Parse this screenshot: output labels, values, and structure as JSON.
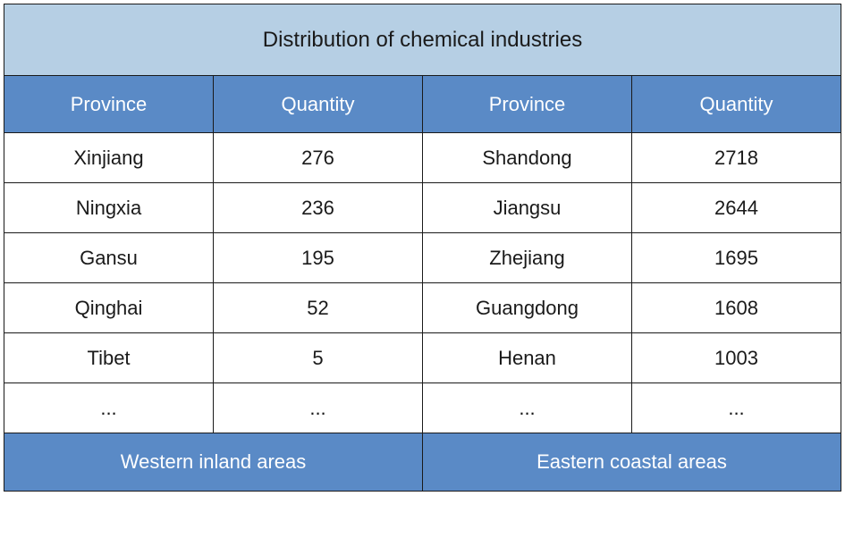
{
  "table": {
    "type": "table",
    "title": "Distribution of chemical industries",
    "title_bg": "#b6cfe4",
    "title_color": "#1a1a1a",
    "title_fontsize": 24,
    "header_bg": "#5a8ac6",
    "header_color": "#ffffff",
    "header_fontsize": 22,
    "cell_bg": "#ffffff",
    "cell_color": "#1a1a1a",
    "cell_fontsize": 22,
    "footer_bg": "#5a8ac6",
    "footer_color": "#ffffff",
    "footer_fontsize": 22,
    "border_color": "#1a1a1a",
    "columns": [
      "Province",
      "Quantity",
      "Province",
      "Quantity"
    ],
    "rows": [
      [
        "Xinjiang",
        "276",
        "Shandong",
        "2718"
      ],
      [
        "Ningxia",
        "236",
        "Jiangsu",
        "2644"
      ],
      [
        "Gansu",
        "195",
        "Zhejiang",
        "1695"
      ],
      [
        "Qinghai",
        "52",
        "Guangdong",
        "1608"
      ],
      [
        "Tibet",
        "5",
        "Henan",
        "1003"
      ],
      [
        "...",
        "...",
        "...",
        "..."
      ]
    ],
    "footer": [
      "Western inland areas",
      "Eastern coastal areas"
    ]
  }
}
